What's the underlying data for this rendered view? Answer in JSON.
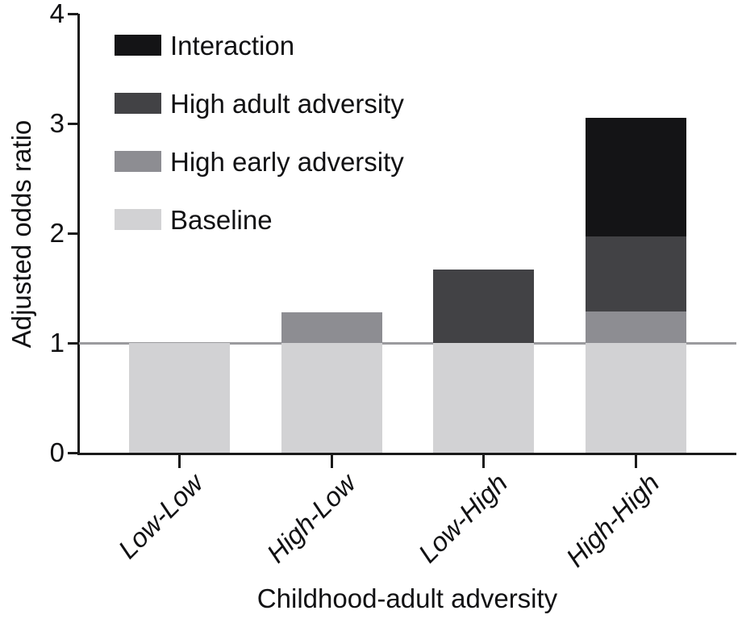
{
  "chart_data": {
    "type": "bar",
    "stacked": true,
    "title": "",
    "xlabel": "Childhood-adult adversity",
    "ylabel": "Adjusted odds ratio",
    "categories": [
      "Low-Low",
      "High-Low",
      "Low-High",
      "High-High"
    ],
    "series": [
      {
        "name": "Baseline",
        "color": "#d2d2d4",
        "values": [
          1.0,
          1.0,
          1.0,
          1.0
        ]
      },
      {
        "name": "High early adversity",
        "color": "#8d8d92",
        "values": [
          0,
          0.28,
          0,
          0.29
        ]
      },
      {
        "name": "High adult adversity",
        "color": "#424245",
        "values": [
          0,
          0,
          0.67,
          0.68
        ]
      },
      {
        "name": "Interaction",
        "color": "#141416",
        "values": [
          0,
          0,
          0,
          1.08
        ]
      }
    ],
    "bar_totals": [
      1.0,
      1.28,
      1.67,
      3.05
    ],
    "ylim": [
      0,
      4
    ],
    "yticks": [
      "0",
      "1",
      "2",
      "3",
      "4"
    ],
    "reference_line_y": 1,
    "grid": false,
    "legend_position": "upper-left-inside",
    "legend": [
      {
        "label": "Interaction",
        "color": "#141416"
      },
      {
        "label": "High adult adversity",
        "color": "#424245"
      },
      {
        "label": "High early adversity",
        "color": "#8d8d92"
      },
      {
        "label": "Baseline",
        "color": "#d2d2d4"
      }
    ],
    "reference_line_color": "#9b9b9e"
  }
}
